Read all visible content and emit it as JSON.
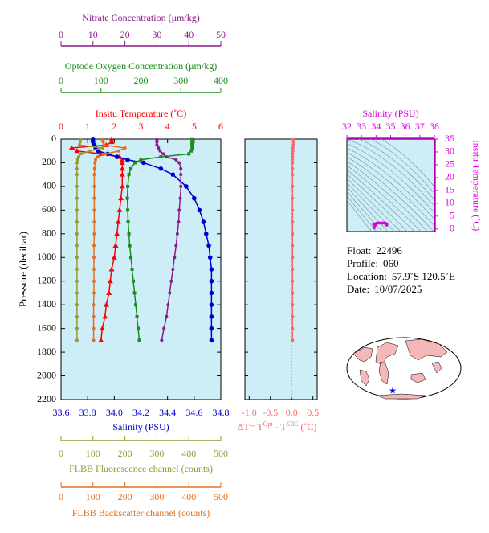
{
  "chart_data": [
    {
      "type": "profile",
      "ylabel": "Pressure (decibar)",
      "ylim": [
        0,
        2200
      ],
      "yticks": [
        0,
        200,
        400,
        600,
        800,
        1000,
        1200,
        1400,
        1600,
        1800,
        2000,
        2200
      ],
      "pressure": [
        5,
        25,
        50,
        75,
        100,
        125,
        150,
        175,
        200,
        250,
        300,
        400,
        500,
        600,
        700,
        800,
        900,
        1000,
        1100,
        1200,
        1300,
        1400,
        1500,
        1600,
        1700
      ],
      "background": "#cdeef7",
      "axes": [
        {
          "label": "Nitrate Concentration (μm/kg)",
          "color": "#8b1a8b",
          "xlim": [
            0,
            50
          ],
          "xticks": [
            0,
            10,
            20,
            30,
            40,
            50
          ]
        },
        {
          "label": "Optode Oxygen Concentration (μm/kg)",
          "color": "#1a8c1a",
          "xlim": [
            0,
            400
          ],
          "xticks": [
            0,
            100,
            200,
            300,
            400
          ]
        },
        {
          "label": "Insitu Temperature (˚C)",
          "color": "#ff0000",
          "xlim": [
            0,
            6
          ],
          "xticks": [
            0,
            1,
            2,
            3,
            4,
            5,
            6
          ]
        },
        {
          "label": "Salinity (PSU)",
          "color": "#0000cc",
          "xlim": [
            33.6,
            34.8
          ],
          "xticks": [
            33.6,
            33.8,
            {
              "value": 34,
              "label": "34.0"
            },
            34.2,
            34.4,
            34.6,
            34.8
          ]
        },
        {
          "label": "FLBB Fluorescence channel (counts)",
          "color": "#999933",
          "xlim": [
            0,
            500
          ],
          "xticks": [
            0,
            100,
            200,
            300,
            400,
            500
          ]
        },
        {
          "label": "FLBB Backscatter channel (counts)",
          "color": "#e07020",
          "xlim": [
            0,
            500
          ],
          "xticks": [
            0,
            100,
            200,
            300,
            400,
            500
          ]
        }
      ],
      "series": [
        {
          "axis": 2,
          "color": "#ff0000",
          "marker": "triangle",
          "values": [
            1.9,
            1.9,
            1.7,
            0.4,
            0.6,
            1.5,
            2.2,
            2.3,
            2.3,
            2.3,
            2.3,
            2.3,
            2.25,
            2.2,
            2.15,
            2.1,
            2.05,
            2.0,
            1.9,
            1.85,
            1.8,
            1.7,
            1.65,
            1.55,
            1.5
          ]
        },
        {
          "axis": 3,
          "color": "#0000cc",
          "marker": "circle",
          "values": [
            33.84,
            33.84,
            33.85,
            33.86,
            33.88,
            33.95,
            34.02,
            34.1,
            34.22,
            34.35,
            34.44,
            34.54,
            34.6,
            34.64,
            34.67,
            34.69,
            34.71,
            34.72,
            34.73,
            34.73,
            34.73,
            34.73,
            34.73,
            34.73,
            34.73
          ]
        },
        {
          "axis": 1,
          "color": "#1a8c1a",
          "marker": "square",
          "values": [
            328,
            328,
            328,
            328,
            326,
            320,
            250,
            200,
            185,
            175,
            170,
            167,
            166,
            167,
            168,
            170,
            172,
            175,
            178,
            181,
            184,
            187,
            190,
            193,
            196
          ]
        },
        {
          "axis": 0,
          "color": "#8b1a8b",
          "marker": "dot",
          "values": [
            30,
            30,
            30,
            30.5,
            31,
            32,
            33,
            36,
            37,
            37.5,
            37.5,
            37.5,
            37.3,
            37,
            36.8,
            36.4,
            36,
            35.5,
            35,
            34.5,
            34,
            33.5,
            33,
            32.2,
            31.5
          ]
        },
        {
          "axis": 4,
          "color": "#999933",
          "marker": "dot",
          "values": [
            60,
            60,
            58,
            130,
            90,
            62,
            55,
            52,
            50,
            50,
            50,
            50,
            50,
            50,
            50,
            50,
            50,
            50,
            50,
            50,
            50,
            50,
            50,
            50,
            50
          ]
        },
        {
          "axis": 5,
          "color": "#e07020",
          "marker": "dot",
          "values": [
            130,
            132,
            135,
            200,
            180,
            140,
            115,
            108,
            106,
            105,
            104,
            104,
            104,
            104,
            104,
            104,
            103,
            103,
            103,
            103,
            103,
            102,
            102,
            102,
            102
          ]
        }
      ]
    },
    {
      "type": "delta",
      "xlabel": [
        "ΔT= T",
        "Opt",
        " - T",
        "SBE",
        " (˚C)"
      ],
      "color": "#ff6666",
      "xlim": [
        -1.1,
        0.6
      ],
      "xticks": [
        {
          "value": -1,
          "label": "-1.0"
        },
        -0.5,
        {
          "value": 0,
          "label": "0.0"
        },
        0.5
      ],
      "ylim": [
        0,
        2200
      ],
      "yticks": [
        0,
        200,
        400,
        600,
        800,
        1000,
        1200,
        1400,
        1600,
        1800,
        2000,
        2200
      ],
      "pressure": [
        5,
        25,
        50,
        75,
        100,
        125,
        150,
        175,
        200,
        250,
        300,
        400,
        500,
        600,
        700,
        800,
        900,
        1000,
        1100,
        1200,
        1300,
        1400,
        1500,
        1600,
        1700
      ],
      "values": [
        0.05,
        0.05,
        0.04,
        0.03,
        0.03,
        0.02,
        0.02,
        0.02,
        0.02,
        0.02,
        0.02,
        0.02,
        0.02,
        0.02,
        0.02,
        0.02,
        0.02,
        0.02,
        0.02,
        0.02,
        0.02,
        0.02,
        0.02,
        0.02,
        0.02
      ]
    },
    {
      "type": "ts",
      "color": "#dd00dd",
      "xlabel": "Salinity (PSU)",
      "ylabel": "Insitu Temperature (˚C)",
      "xlim": [
        32,
        38
      ],
      "xticks": [
        32,
        33,
        34,
        35,
        36,
        37,
        38
      ],
      "ylim": [
        -1,
        35
      ],
      "yticks": [
        0,
        5,
        10,
        15,
        20,
        25,
        30,
        35
      ]
    }
  ],
  "float_info": [
    {
      "label": "Float:",
      "value": "22496"
    },
    {
      "label": "Profile:",
      "value": "060"
    },
    {
      "label": "Location:",
      "value": "57.9˚S  120.5˚E"
    },
    {
      "label": "Date:",
      "value": "10/07/2025"
    }
  ]
}
